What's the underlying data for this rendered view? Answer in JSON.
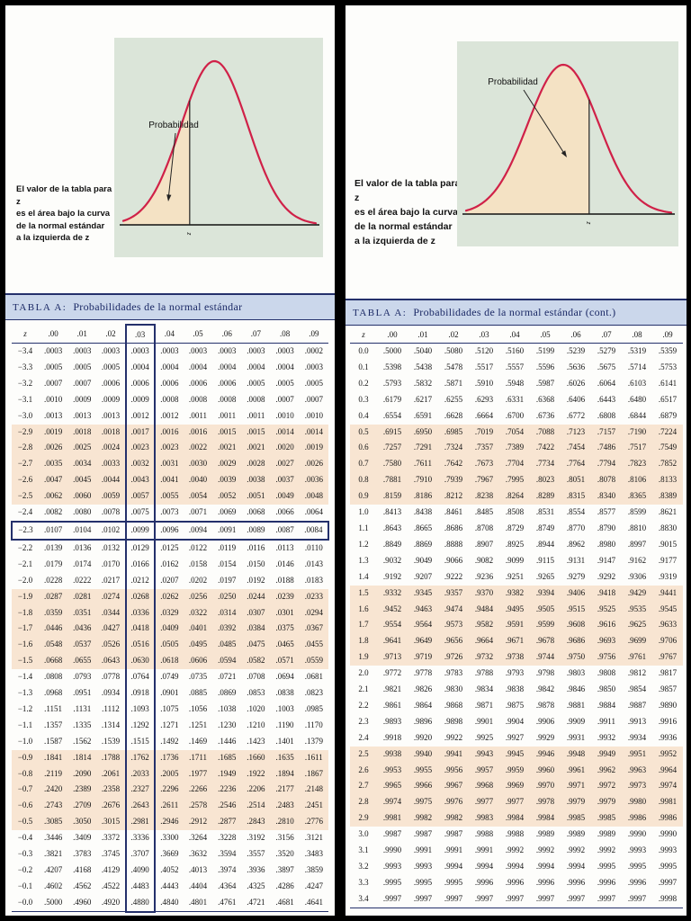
{
  "colors": {
    "navy": "#24306b",
    "band_peach": "#f8e5d2",
    "title_bar_bg": "#cbd7eb",
    "curve_red": "#d02148",
    "figure_green": "#dbe5d9",
    "shade_tan": "#f4e2c4"
  },
  "pages": [
    {
      "note_lines": [
        "El valor de la tabla para z",
        "es el área bajo la curva",
        "de la normal estándar",
        "a la izquierda de z"
      ],
      "diagram": {
        "label": "Probabilidad",
        "axis_label": "z"
      },
      "table": {
        "title_prefix": "TABLA A:",
        "title": "Probabilidades de la normal estándar",
        "col_headers": [
          "z",
          ".00",
          ".01",
          ".02",
          ".03",
          ".04",
          ".05",
          ".06",
          ".07",
          ".08",
          ".09"
        ],
        "highlight_row_z": "−2.3",
        "highlight_col": ".03",
        "rows": [
          [
            "−3.4",
            ".0003",
            ".0003",
            ".0003",
            ".0003",
            ".0003",
            ".0003",
            ".0003",
            ".0003",
            ".0003",
            ".0002"
          ],
          [
            "−3.3",
            ".0005",
            ".0005",
            ".0005",
            ".0004",
            ".0004",
            ".0004",
            ".0004",
            ".0004",
            ".0004",
            ".0003"
          ],
          [
            "−3.2",
            ".0007",
            ".0007",
            ".0006",
            ".0006",
            ".0006",
            ".0006",
            ".0006",
            ".0005",
            ".0005",
            ".0005"
          ],
          [
            "−3.1",
            ".0010",
            ".0009",
            ".0009",
            ".0009",
            ".0008",
            ".0008",
            ".0008",
            ".0008",
            ".0007",
            ".0007"
          ],
          [
            "−3.0",
            ".0013",
            ".0013",
            ".0013",
            ".0012",
            ".0012",
            ".0011",
            ".0011",
            ".0011",
            ".0010",
            ".0010"
          ],
          [
            "−2.9",
            ".0019",
            ".0018",
            ".0018",
            ".0017",
            ".0016",
            ".0016",
            ".0015",
            ".0015",
            ".0014",
            ".0014"
          ],
          [
            "−2.8",
            ".0026",
            ".0025",
            ".0024",
            ".0023",
            ".0023",
            ".0022",
            ".0021",
            ".0021",
            ".0020",
            ".0019"
          ],
          [
            "−2.7",
            ".0035",
            ".0034",
            ".0033",
            ".0032",
            ".0031",
            ".0030",
            ".0029",
            ".0028",
            ".0027",
            ".0026"
          ],
          [
            "−2.6",
            ".0047",
            ".0045",
            ".0044",
            ".0043",
            ".0041",
            ".0040",
            ".0039",
            ".0038",
            ".0037",
            ".0036"
          ],
          [
            "−2.5",
            ".0062",
            ".0060",
            ".0059",
            ".0057",
            ".0055",
            ".0054",
            ".0052",
            ".0051",
            ".0049",
            ".0048"
          ],
          [
            "−2.4",
            ".0082",
            ".0080",
            ".0078",
            ".0075",
            ".0073",
            ".0071",
            ".0069",
            ".0068",
            ".0066",
            ".0064"
          ],
          [
            "−2.3",
            ".0107",
            ".0104",
            ".0102",
            ".0099",
            ".0096",
            ".0094",
            ".0091",
            ".0089",
            ".0087",
            ".0084"
          ],
          [
            "−2.2",
            ".0139",
            ".0136",
            ".0132",
            ".0129",
            ".0125",
            ".0122",
            ".0119",
            ".0116",
            ".0113",
            ".0110"
          ],
          [
            "−2.1",
            ".0179",
            ".0174",
            ".0170",
            ".0166",
            ".0162",
            ".0158",
            ".0154",
            ".0150",
            ".0146",
            ".0143"
          ],
          [
            "−2.0",
            ".0228",
            ".0222",
            ".0217",
            ".0212",
            ".0207",
            ".0202",
            ".0197",
            ".0192",
            ".0188",
            ".0183"
          ],
          [
            "−1.9",
            ".0287",
            ".0281",
            ".0274",
            ".0268",
            ".0262",
            ".0256",
            ".0250",
            ".0244",
            ".0239",
            ".0233"
          ],
          [
            "−1.8",
            ".0359",
            ".0351",
            ".0344",
            ".0336",
            ".0329",
            ".0322",
            ".0314",
            ".0307",
            ".0301",
            ".0294"
          ],
          [
            "−1.7",
            ".0446",
            ".0436",
            ".0427",
            ".0418",
            ".0409",
            ".0401",
            ".0392",
            ".0384",
            ".0375",
            ".0367"
          ],
          [
            "−1.6",
            ".0548",
            ".0537",
            ".0526",
            ".0516",
            ".0505",
            ".0495",
            ".0485",
            ".0475",
            ".0465",
            ".0455"
          ],
          [
            "−1.5",
            ".0668",
            ".0655",
            ".0643",
            ".0630",
            ".0618",
            ".0606",
            ".0594",
            ".0582",
            ".0571",
            ".0559"
          ],
          [
            "−1.4",
            ".0808",
            ".0793",
            ".0778",
            ".0764",
            ".0749",
            ".0735",
            ".0721",
            ".0708",
            ".0694",
            ".0681"
          ],
          [
            "−1.3",
            ".0968",
            ".0951",
            ".0934",
            ".0918",
            ".0901",
            ".0885",
            ".0869",
            ".0853",
            ".0838",
            ".0823"
          ],
          [
            "−1.2",
            ".1151",
            ".1131",
            ".1112",
            ".1093",
            ".1075",
            ".1056",
            ".1038",
            ".1020",
            ".1003",
            ".0985"
          ],
          [
            "−1.1",
            ".1357",
            ".1335",
            ".1314",
            ".1292",
            ".1271",
            ".1251",
            ".1230",
            ".1210",
            ".1190",
            ".1170"
          ],
          [
            "−1.0",
            ".1587",
            ".1562",
            ".1539",
            ".1515",
            ".1492",
            ".1469",
            ".1446",
            ".1423",
            ".1401",
            ".1379"
          ],
          [
            "−0.9",
            ".1841",
            ".1814",
            ".1788",
            ".1762",
            ".1736",
            ".1711",
            ".1685",
            ".1660",
            ".1635",
            ".1611"
          ],
          [
            "−0.8",
            ".2119",
            ".2090",
            ".2061",
            ".2033",
            ".2005",
            ".1977",
            ".1949",
            ".1922",
            ".1894",
            ".1867"
          ],
          [
            "−0.7",
            ".2420",
            ".2389",
            ".2358",
            ".2327",
            ".2296",
            ".2266",
            ".2236",
            ".2206",
            ".2177",
            ".2148"
          ],
          [
            "−0.6",
            ".2743",
            ".2709",
            ".2676",
            ".2643",
            ".2611",
            ".2578",
            ".2546",
            ".2514",
            ".2483",
            ".2451"
          ],
          [
            "−0.5",
            ".3085",
            ".3050",
            ".3015",
            ".2981",
            ".2946",
            ".2912",
            ".2877",
            ".2843",
            ".2810",
            ".2776"
          ],
          [
            "−0.4",
            ".3446",
            ".3409",
            ".3372",
            ".3336",
            ".3300",
            ".3264",
            ".3228",
            ".3192",
            ".3156",
            ".3121"
          ],
          [
            "−0.3",
            ".3821",
            ".3783",
            ".3745",
            ".3707",
            ".3669",
            ".3632",
            ".3594",
            ".3557",
            ".3520",
            ".3483"
          ],
          [
            "−0.2",
            ".4207",
            ".4168",
            ".4129",
            ".4090",
            ".4052",
            ".4013",
            ".3974",
            ".3936",
            ".3897",
            ".3859"
          ],
          [
            "−0.1",
            ".4602",
            ".4562",
            ".4522",
            ".4483",
            ".4443",
            ".4404",
            ".4364",
            ".4325",
            ".4286",
            ".4247"
          ],
          [
            "−0.0",
            ".5000",
            ".4960",
            ".4920",
            ".4880",
            ".4840",
            ".4801",
            ".4761",
            ".4721",
            ".4681",
            ".4641"
          ]
        ]
      }
    },
    {
      "note_lines": [
        "El valor de la tabla para z",
        "es el área bajo la curva",
        "de la normal estándar",
        "a la izquierda de z"
      ],
      "diagram": {
        "label": "Probabilidad",
        "axis_label": "z"
      },
      "table": {
        "title_prefix": "TABLA A:",
        "title": "Probabilidades de la normal estándar (cont.)",
        "col_headers": [
          "z",
          ".00",
          ".01",
          ".02",
          ".03",
          ".04",
          ".05",
          ".06",
          ".07",
          ".08",
          ".09"
        ],
        "rows": [
          [
            "0.0",
            ".5000",
            ".5040",
            ".5080",
            ".5120",
            ".5160",
            ".5199",
            ".5239",
            ".5279",
            ".5319",
            ".5359"
          ],
          [
            "0.1",
            ".5398",
            ".5438",
            ".5478",
            ".5517",
            ".5557",
            ".5596",
            ".5636",
            ".5675",
            ".5714",
            ".5753"
          ],
          [
            "0.2",
            ".5793",
            ".5832",
            ".5871",
            ".5910",
            ".5948",
            ".5987",
            ".6026",
            ".6064",
            ".6103",
            ".6141"
          ],
          [
            "0.3",
            ".6179",
            ".6217",
            ".6255",
            ".6293",
            ".6331",
            ".6368",
            ".6406",
            ".6443",
            ".6480",
            ".6517"
          ],
          [
            "0.4",
            ".6554",
            ".6591",
            ".6628",
            ".6664",
            ".6700",
            ".6736",
            ".6772",
            ".6808",
            ".6844",
            ".6879"
          ],
          [
            "0.5",
            ".6915",
            ".6950",
            ".6985",
            ".7019",
            ".7054",
            ".7088",
            ".7123",
            ".7157",
            ".7190",
            ".7224"
          ],
          [
            "0.6",
            ".7257",
            ".7291",
            ".7324",
            ".7357",
            ".7389",
            ".7422",
            ".7454",
            ".7486",
            ".7517",
            ".7549"
          ],
          [
            "0.7",
            ".7580",
            ".7611",
            ".7642",
            ".7673",
            ".7704",
            ".7734",
            ".7764",
            ".7794",
            ".7823",
            ".7852"
          ],
          [
            "0.8",
            ".7881",
            ".7910",
            ".7939",
            ".7967",
            ".7995",
            ".8023",
            ".8051",
            ".8078",
            ".8106",
            ".8133"
          ],
          [
            "0.9",
            ".8159",
            ".8186",
            ".8212",
            ".8238",
            ".8264",
            ".8289",
            ".8315",
            ".8340",
            ".8365",
            ".8389"
          ],
          [
            "1.0",
            ".8413",
            ".8438",
            ".8461",
            ".8485",
            ".8508",
            ".8531",
            ".8554",
            ".8577",
            ".8599",
            ".8621"
          ],
          [
            "1.1",
            ".8643",
            ".8665",
            ".8686",
            ".8708",
            ".8729",
            ".8749",
            ".8770",
            ".8790",
            ".8810",
            ".8830"
          ],
          [
            "1.2",
            ".8849",
            ".8869",
            ".8888",
            ".8907",
            ".8925",
            ".8944",
            ".8962",
            ".8980",
            ".8997",
            ".9015"
          ],
          [
            "1.3",
            ".9032",
            ".9049",
            ".9066",
            ".9082",
            ".9099",
            ".9115",
            ".9131",
            ".9147",
            ".9162",
            ".9177"
          ],
          [
            "1.4",
            ".9192",
            ".9207",
            ".9222",
            ".9236",
            ".9251",
            ".9265",
            ".9279",
            ".9292",
            ".9306",
            ".9319"
          ],
          [
            "1.5",
            ".9332",
            ".9345",
            ".9357",
            ".9370",
            ".9382",
            ".9394",
            ".9406",
            ".9418",
            ".9429",
            ".9441"
          ],
          [
            "1.6",
            ".9452",
            ".9463",
            ".9474",
            ".9484",
            ".9495",
            ".9505",
            ".9515",
            ".9525",
            ".9535",
            ".9545"
          ],
          [
            "1.7",
            ".9554",
            ".9564",
            ".9573",
            ".9582",
            ".9591",
            ".9599",
            ".9608",
            ".9616",
            ".9625",
            ".9633"
          ],
          [
            "1.8",
            ".9641",
            ".9649",
            ".9656",
            ".9664",
            ".9671",
            ".9678",
            ".9686",
            ".9693",
            ".9699",
            ".9706"
          ],
          [
            "1.9",
            ".9713",
            ".9719",
            ".9726",
            ".9732",
            ".9738",
            ".9744",
            ".9750",
            ".9756",
            ".9761",
            ".9767"
          ],
          [
            "2.0",
            ".9772",
            ".9778",
            ".9783",
            ".9788",
            ".9793",
            ".9798",
            ".9803",
            ".9808",
            ".9812",
            ".9817"
          ],
          [
            "2.1",
            ".9821",
            ".9826",
            ".9830",
            ".9834",
            ".9838",
            ".9842",
            ".9846",
            ".9850",
            ".9854",
            ".9857"
          ],
          [
            "2.2",
            ".9861",
            ".9864",
            ".9868",
            ".9871",
            ".9875",
            ".9878",
            ".9881",
            ".9884",
            ".9887",
            ".9890"
          ],
          [
            "2.3",
            ".9893",
            ".9896",
            ".9898",
            ".9901",
            ".9904",
            ".9906",
            ".9909",
            ".9911",
            ".9913",
            ".9916"
          ],
          [
            "2.4",
            ".9918",
            ".9920",
            ".9922",
            ".9925",
            ".9927",
            ".9929",
            ".9931",
            ".9932",
            ".9934",
            ".9936"
          ],
          [
            "2.5",
            ".9938",
            ".9940",
            ".9941",
            ".9943",
            ".9945",
            ".9946",
            ".9948",
            ".9949",
            ".9951",
            ".9952"
          ],
          [
            "2.6",
            ".9953",
            ".9955",
            ".9956",
            ".9957",
            ".9959",
            ".9960",
            ".9961",
            ".9962",
            ".9963",
            ".9964"
          ],
          [
            "2.7",
            ".9965",
            ".9966",
            ".9967",
            ".9968",
            ".9969",
            ".9970",
            ".9971",
            ".9972",
            ".9973",
            ".9974"
          ],
          [
            "2.8",
            ".9974",
            ".9975",
            ".9976",
            ".9977",
            ".9977",
            ".9978",
            ".9979",
            ".9979",
            ".9980",
            ".9981"
          ],
          [
            "2.9",
            ".9981",
            ".9982",
            ".9982",
            ".9983",
            ".9984",
            ".9984",
            ".9985",
            ".9985",
            ".9986",
            ".9986"
          ],
          [
            "3.0",
            ".9987",
            ".9987",
            ".9987",
            ".9988",
            ".9988",
            ".9989",
            ".9989",
            ".9989",
            ".9990",
            ".9990"
          ],
          [
            "3.1",
            ".9990",
            ".9991",
            ".9991",
            ".9991",
            ".9992",
            ".9992",
            ".9992",
            ".9992",
            ".9993",
            ".9993"
          ],
          [
            "3.2",
            ".9993",
            ".9993",
            ".9994",
            ".9994",
            ".9994",
            ".9994",
            ".9994",
            ".9995",
            ".9995",
            ".9995"
          ],
          [
            "3.3",
            ".9995",
            ".9995",
            ".9995",
            ".9996",
            ".9996",
            ".9996",
            ".9996",
            ".9996",
            ".9996",
            ".9997"
          ],
          [
            "3.4",
            ".9997",
            ".9997",
            ".9997",
            ".9997",
            ".9997",
            ".9997",
            ".9997",
            ".9997",
            ".9997",
            ".9998"
          ]
        ]
      }
    }
  ]
}
